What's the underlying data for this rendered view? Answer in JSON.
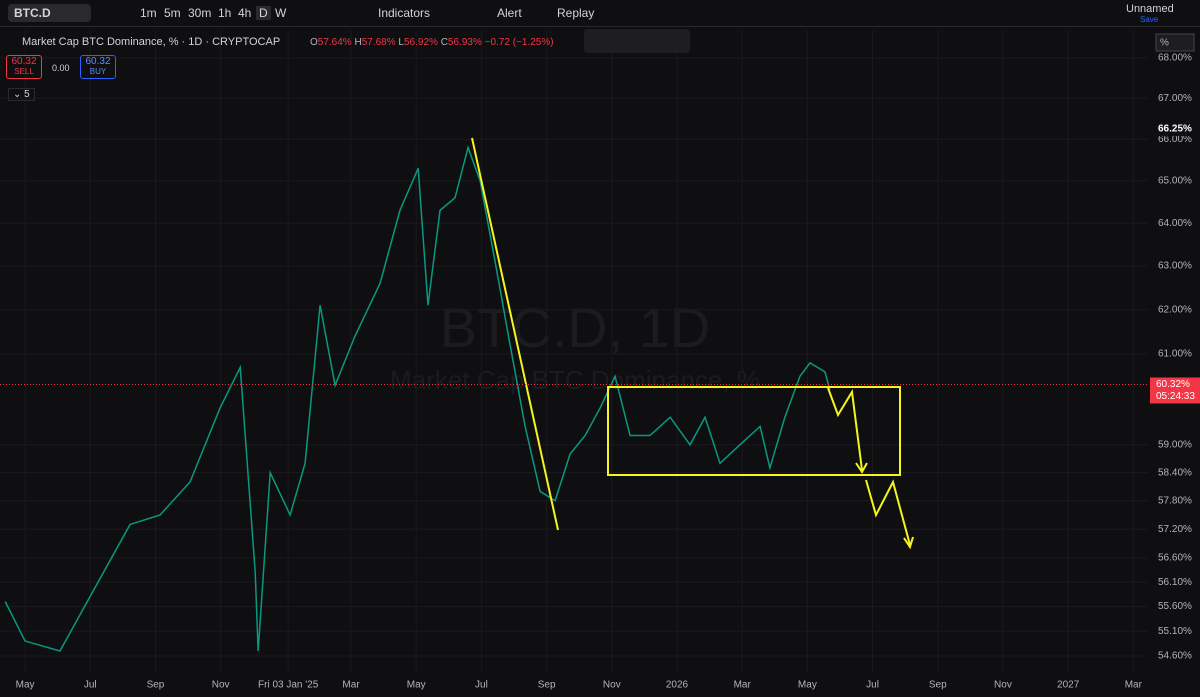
{
  "toolbar": {
    "symbol": "BTC.D",
    "intervals": [
      "1m",
      "5m",
      "30m",
      "1h",
      "4h",
      "D",
      "W"
    ],
    "indicators": "Indicators",
    "alert": "Alert",
    "replay": "Replay",
    "layout_name": "Unnamed",
    "save": "Save"
  },
  "legend": {
    "title": "Market Cap BTC Dominance, % · 1D · CRYPTOCAP",
    "ohlc": [
      {
        "key": "O",
        "value": "57.64%"
      },
      {
        "key": "H",
        "value": "57.68%"
      },
      {
        "key": "L",
        "value": "56.92%"
      },
      {
        "key": "C",
        "value": "56.93%"
      }
    ],
    "change": "−0.72 (−1.25%)",
    "sell_price": "60.32",
    "sell": "SELL",
    "spread": "0.00",
    "buy_price": "60.32",
    "buy": "BUY",
    "indicators_count": "5"
  },
  "watermark": {
    "symbol": "BTC.D, 1D",
    "description": "Market Cap BTC Dominance, %"
  },
  "scale_mode": "%",
  "chart_data": {
    "type": "line",
    "color": "#089981",
    "log": true,
    "x": [
      -0.61,
      0,
      1.07,
      1.99,
      3.22,
      4.14,
      5.06,
      5.98,
      6.6,
      7.06,
      7.15,
      7.52,
      8.13,
      8.59,
      9.05,
      9.51,
      10.12,
      10.89,
      11.5,
      12.06,
      12.36,
      12.73,
      13.19,
      13.59,
      13.96,
      14.42,
      14.88,
      15.34,
      15.8,
      16.26,
      16.72,
      17.18,
      17.64,
      18.1,
      18.56,
      19.17,
      19.79,
      20.4,
      20.86,
      21.32,
      21.93,
      22.55,
      22.85,
      23.31,
      23.77,
      24.08,
      24.54,
      24.69
    ],
    "values": [
      55.7,
      54.9,
      54.7,
      55.8,
      57.3,
      57.5,
      58.2,
      59.8,
      60.7,
      56.3,
      54.7,
      58.4,
      57.5,
      58.6,
      62.1,
      60.3,
      61.4,
      62.6,
      64.3,
      65.3,
      62.1,
      64.3,
      64.6,
      65.8,
      65.0,
      63.1,
      61.2,
      59.4,
      58.0,
      57.8,
      58.8,
      59.2,
      59.8,
      60.5,
      59.2,
      59.2,
      59.6,
      59.0,
      59.6,
      58.6,
      59.0,
      59.4,
      58.5,
      59.6,
      60.5,
      60.8,
      60.6,
      60.2
    ],
    "xlim": [
      -0.77,
      34.45
    ],
    "ylim": [
      54.28,
      68.7
    ],
    "xticks": [
      {
        "value": 0,
        "label": "May"
      },
      {
        "value": 2,
        "label": "Jul"
      },
      {
        "value": 4,
        "label": "Sep"
      },
      {
        "value": 6,
        "label": "Nov"
      },
      {
        "value": 8.07,
        "label": "Fri 03 Jan '25"
      },
      {
        "value": 10,
        "label": "Mar"
      },
      {
        "value": 12,
        "label": "May"
      },
      {
        "value": 14,
        "label": "Jul"
      },
      {
        "value": 16,
        "label": "Sep"
      },
      {
        "value": 18,
        "label": "Nov"
      },
      {
        "value": 20,
        "label": "2026"
      },
      {
        "value": 22,
        "label": "Mar"
      },
      {
        "value": 24,
        "label": "May"
      },
      {
        "value": 26,
        "label": "Jul"
      },
      {
        "value": 28,
        "label": "Sep"
      },
      {
        "value": 30,
        "label": "Nov"
      },
      {
        "value": 32,
        "label": "2027"
      },
      {
        "value": 34,
        "label": "Mar"
      }
    ],
    "yticks": [
      {
        "value": 54.6,
        "label": "54.60%"
      },
      {
        "value": 55.1,
        "label": "55.10%"
      },
      {
        "value": 55.6,
        "label": "55.60%"
      },
      {
        "value": 56.1,
        "label": "56.10%"
      },
      {
        "value": 56.6,
        "label": "56.60%"
      },
      {
        "value": 57.2,
        "label": "57.20%"
      },
      {
        "value": 57.8,
        "label": "57.80%"
      },
      {
        "value": 58.4,
        "label": "58.40%"
      },
      {
        "value": 59,
        "label": "59.00%"
      },
      {
        "value": 61,
        "label": "61.00%"
      },
      {
        "value": 62,
        "label": "62.00%"
      },
      {
        "value": 63,
        "label": "63.00%"
      },
      {
        "value": 64,
        "label": "64.00%"
      },
      {
        "value": 65,
        "label": "65.00%"
      },
      {
        "value": 66,
        "label": "66.00%"
      },
      {
        "value": 67,
        "label": "67.00%"
      },
      {
        "value": 68,
        "label": "68.00%"
      }
    ],
    "price_labels": [
      {
        "value": 60.32,
        "label": "60.32%"
      },
      {
        "value": 66.25,
        "label": "66.25%"
      }
    ],
    "countdown": "05:24:33"
  }
}
